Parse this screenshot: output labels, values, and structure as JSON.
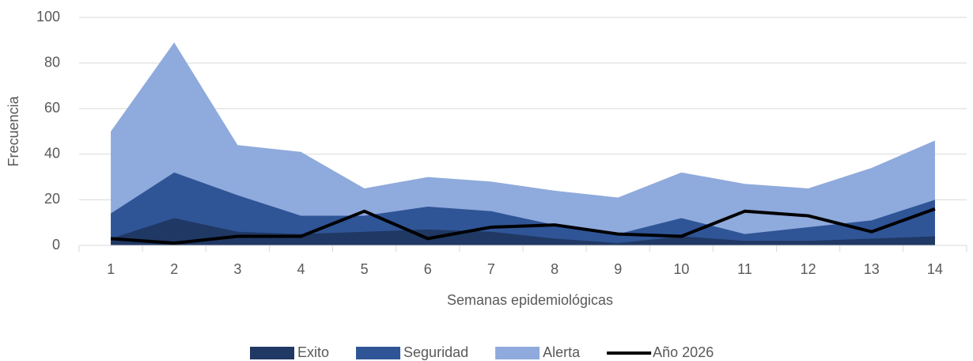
{
  "chart_data": {
    "type": "area",
    "x_label": "Semanas epidemiológicas",
    "y_label": "Frecuencia",
    "categories": [
      "1",
      "2",
      "3",
      "4",
      "5",
      "6",
      "7",
      "8",
      "9",
      "10",
      "11",
      "12",
      "13",
      "14"
    ],
    "series": [
      {
        "name": "Alerta",
        "color": "#8faadc",
        "type": "area",
        "values": [
          50,
          89,
          44,
          41,
          25,
          30,
          28,
          24,
          21,
          32,
          27,
          25,
          34,
          46
        ]
      },
      {
        "name": "Seguridad",
        "color": "#2f5597",
        "type": "area",
        "values": [
          14,
          32,
          22,
          13,
          13,
          17,
          15,
          9,
          5,
          12,
          5,
          8,
          11,
          20
        ]
      },
      {
        "name": "Exito",
        "color": "#203864",
        "type": "area",
        "values": [
          3,
          12,
          6,
          5,
          6,
          7,
          6,
          3,
          1,
          4,
          2,
          2,
          3,
          4
        ]
      },
      {
        "name": "Año 2026",
        "color": "#000000",
        "type": "line",
        "values": [
          3,
          1,
          4,
          4,
          15,
          3,
          8,
          9,
          5,
          4,
          15,
          13,
          6,
          16
        ]
      }
    ],
    "legend_order": [
      2,
      1,
      0,
      3
    ],
    "ylim": [
      0,
      100
    ],
    "yticks": [
      0,
      20,
      40,
      60,
      80,
      100
    ],
    "grid": true,
    "legend": "bottom"
  }
}
